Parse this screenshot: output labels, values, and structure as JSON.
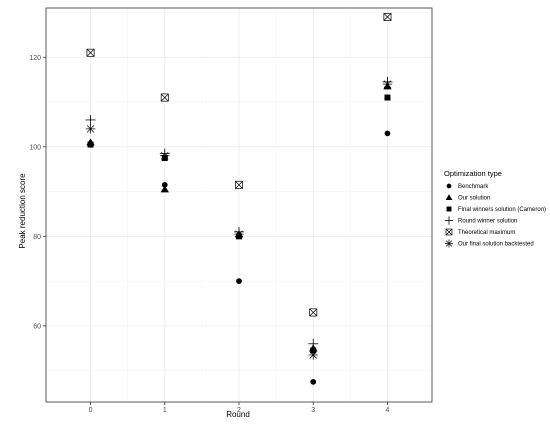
{
  "chart_data": {
    "type": "scatter",
    "xlabel": "Round",
    "ylabel": "Peak reduction score",
    "x_ticks": [
      "0",
      "1",
      "2",
      "3",
      "4"
    ],
    "y_ticks": [
      "60",
      "80",
      "100",
      "120"
    ],
    "x_range": [
      -0.6,
      4.6
    ],
    "y_range": [
      43,
      131
    ],
    "grid": true,
    "legend_position": "right",
    "legend_title": "Optimization type",
    "series": [
      {
        "name": "Benchmark",
        "shape": "circle",
        "x": [
          1,
          2,
          3,
          4
        ],
        "y": [
          91.5,
          70,
          47.5,
          103
        ]
      },
      {
        "name": "Our solution",
        "shape": "triangle",
        "x": [
          0,
          1,
          2,
          3,
          4
        ],
        "y": [
          101,
          90.5,
          80.5,
          55,
          113.5
        ]
      },
      {
        "name": "Final winners solution (Cameron)",
        "shape": "square",
        "x": [
          0,
          1,
          2,
          3,
          4
        ],
        "y": [
          100.5,
          97.5,
          80,
          54.5,
          111
        ]
      },
      {
        "name": "Round winner solution",
        "shape": "plus",
        "x": [
          0,
          1,
          2,
          3,
          4
        ],
        "y": [
          106,
          98.5,
          81,
          56,
          114.5
        ]
      },
      {
        "name": "Theoretical maximum",
        "shape": "boxed-x",
        "x": [
          0,
          1,
          2,
          3,
          4
        ],
        "y": [
          121,
          111,
          91.5,
          63,
          129
        ]
      },
      {
        "name": "Our final solution backtested",
        "shape": "asterisk",
        "x": [
          0,
          1,
          2,
          3,
          4
        ],
        "y": [
          104,
          98,
          80.5,
          53.5,
          114
        ]
      }
    ]
  }
}
